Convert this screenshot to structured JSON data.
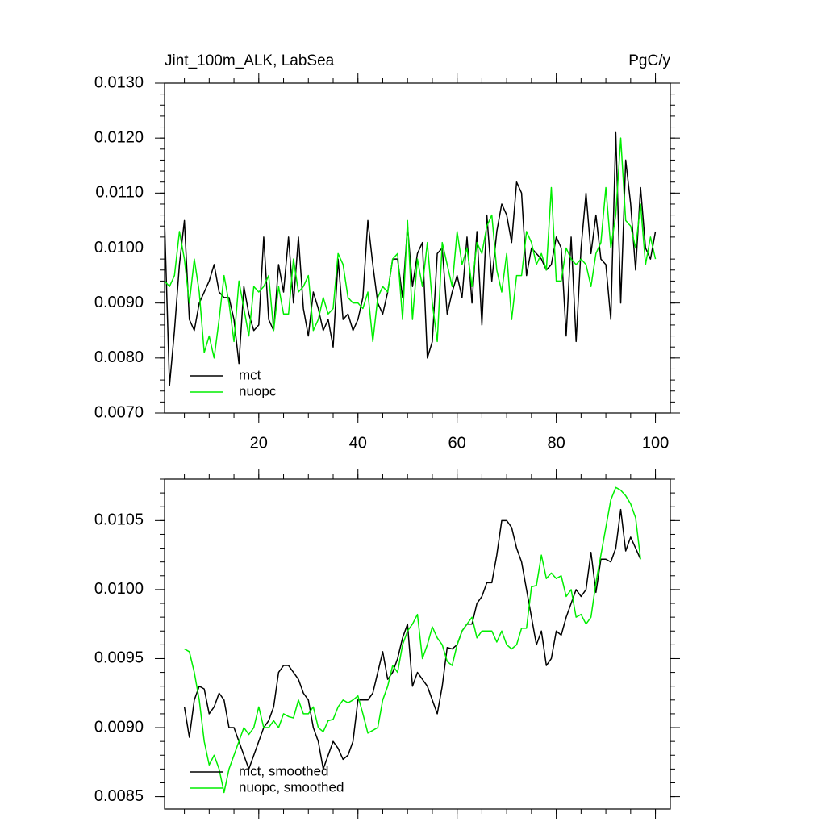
{
  "chart_data": [
    {
      "type": "line",
      "title": "Jint_100m_ALK, LabSea",
      "units": "PgC/y",
      "x": [
        1,
        2,
        3,
        4,
        5,
        6,
        7,
        8,
        9,
        10,
        11,
        12,
        13,
        14,
        15,
        16,
        17,
        18,
        19,
        20,
        21,
        22,
        23,
        24,
        25,
        26,
        27,
        28,
        29,
        30,
        31,
        32,
        33,
        34,
        35,
        36,
        37,
        38,
        39,
        40,
        41,
        42,
        43,
        44,
        45,
        46,
        47,
        48,
        49,
        50,
        51,
        52,
        53,
        54,
        55,
        56,
        57,
        58,
        59,
        60,
        61,
        62,
        63,
        64,
        65,
        66,
        67,
        68,
        69,
        70,
        71,
        72,
        73,
        74,
        75,
        76,
        77,
        78,
        79,
        80,
        81,
        82,
        83,
        84,
        85,
        86,
        87,
        88,
        89,
        90,
        91,
        92,
        93,
        94,
        95,
        96,
        97,
        98,
        99,
        100
      ],
      "series": [
        {
          "name": "mct",
          "color": "#000000",
          "values": [
            0.0105,
            0.0075,
            0.0085,
            0.0097,
            0.0105,
            0.0087,
            0.0085,
            0.009,
            0.0092,
            0.0094,
            0.0097,
            0.0092,
            0.0091,
            0.0091,
            0.0087,
            0.0079,
            0.0093,
            0.0088,
            0.0085,
            0.0086,
            0.0102,
            0.0087,
            0.0085,
            0.0097,
            0.0092,
            0.0102,
            0.009,
            0.0102,
            0.0089,
            0.0084,
            0.0092,
            0.0089,
            0.0085,
            0.0087,
            0.0082,
            0.0098,
            0.0087,
            0.0088,
            0.0085,
            0.0087,
            0.0091,
            0.0105,
            0.0097,
            0.009,
            0.0088,
            0.0092,
            0.0098,
            0.0098,
            0.0091,
            0.0104,
            0.0093,
            0.0099,
            0.0101,
            0.008,
            0.0083,
            0.0099,
            0.01,
            0.0088,
            0.0092,
            0.0095,
            0.0091,
            0.0102,
            0.009,
            0.0103,
            0.0086,
            0.0106,
            0.0094,
            0.0103,
            0.0108,
            0.0106,
            0.0101,
            0.0112,
            0.011,
            0.0095,
            0.01,
            0.0099,
            0.0098,
            0.0096,
            0.0097,
            0.0102,
            0.01,
            0.0084,
            0.0102,
            0.0083,
            0.01,
            0.011,
            0.0099,
            0.0106,
            0.0098,
            0.0097,
            0.0087,
            0.0121,
            0.009,
            0.0116,
            0.0108,
            0.0096,
            0.0111,
            0.01,
            0.0098,
            0.0103
          ]
        },
        {
          "name": "nuopc",
          "color": "#00ee00",
          "values": [
            0.0094,
            0.0093,
            0.0095,
            0.0103,
            0.0098,
            0.009,
            0.0098,
            0.0092,
            0.0081,
            0.0084,
            0.008,
            0.0087,
            0.0095,
            0.009,
            0.0083,
            0.0094,
            0.0089,
            0.0084,
            0.0093,
            0.0092,
            0.0093,
            0.0095,
            0.0085,
            0.0093,
            0.0088,
            0.0088,
            0.0098,
            0.0092,
            0.0093,
            0.0095,
            0.0085,
            0.0087,
            0.0091,
            0.0088,
            0.0089,
            0.0099,
            0.0097,
            0.0091,
            0.009,
            0.009,
            0.0089,
            0.0092,
            0.0083,
            0.0091,
            0.0093,
            0.0092,
            0.0098,
            0.0099,
            0.0087,
            0.0105,
            0.0087,
            0.0098,
            0.0093,
            0.0101,
            0.009,
            0.0083,
            0.0101,
            0.0097,
            0.0093,
            0.0103,
            0.0097,
            0.01,
            0.0093,
            0.0101,
            0.0099,
            0.0104,
            0.0106,
            0.0096,
            0.0092,
            0.0099,
            0.0087,
            0.0095,
            0.0095,
            0.0103,
            0.0101,
            0.0097,
            0.0099,
            0.0096,
            0.0111,
            0.0094,
            0.0094,
            0.01,
            0.0098,
            0.0097,
            0.0098,
            0.0097,
            0.0093,
            0.0099,
            0.0101,
            0.0111,
            0.01,
            0.0106,
            0.012,
            0.0105,
            0.0104,
            0.01,
            0.0108,
            0.0097,
            0.0102,
            0.0098
          ]
        }
      ],
      "xlim": [
        1,
        103
      ],
      "xticks": [
        20,
        40,
        60,
        80,
        100
      ],
      "ylim": [
        0.007,
        0.013
      ],
      "yticks": [
        {
          "value": 0.007,
          "label": "0.0070"
        },
        {
          "value": 0.008,
          "label": "0.0080"
        },
        {
          "value": 0.009,
          "label": "0.0090"
        },
        {
          "value": 0.01,
          "label": "0.0100"
        },
        {
          "value": 0.011,
          "label": "0.0110"
        },
        {
          "value": 0.012,
          "label": "0.0120"
        },
        {
          "value": 0.013,
          "label": "0.0130"
        }
      ],
      "legend": "lower left"
    },
    {
      "type": "line",
      "x": [
        5,
        6,
        7,
        8,
        9,
        10,
        11,
        12,
        13,
        14,
        15,
        16,
        17,
        18,
        19,
        20,
        21,
        22,
        23,
        24,
        25,
        26,
        27,
        28,
        29,
        30,
        31,
        32,
        33,
        34,
        35,
        36,
        37,
        38,
        39,
        40,
        41,
        42,
        43,
        44,
        45,
        46,
        47,
        48,
        49,
        50,
        51,
        52,
        53,
        54,
        55,
        56,
        57,
        58,
        59,
        60,
        61,
        62,
        63,
        64,
        65,
        66,
        67,
        68,
        69,
        70,
        71,
        72,
        73,
        74,
        75,
        76,
        77,
        78,
        79,
        80,
        81,
        82,
        83,
        84,
        85,
        86,
        87,
        88,
        89,
        90,
        91,
        92,
        93,
        94,
        95,
        96,
        97
      ],
      "series": [
        {
          "name": "mct, smoothed",
          "color": "#000000",
          "values": [
            0.00915,
            0.00893,
            0.0092,
            0.0093,
            0.00928,
            0.0091,
            0.00915,
            0.00925,
            0.0092,
            0.009,
            0.009,
            0.0089,
            0.0088,
            0.0087,
            0.0088,
            0.0089,
            0.009,
            0.00905,
            0.00915,
            0.0094,
            0.00945,
            0.00945,
            0.0094,
            0.00935,
            0.00925,
            0.0092,
            0.009,
            0.0089,
            0.0087,
            0.0088,
            0.0089,
            0.00885,
            0.00877,
            0.0088,
            0.0089,
            0.0092,
            0.0092,
            0.0092,
            0.00925,
            0.0094,
            0.00955,
            0.00935,
            0.0094,
            0.0095,
            0.00965,
            0.00975,
            0.0093,
            0.0094,
            0.00935,
            0.0093,
            0.0092,
            0.0091,
            0.0093,
            0.00958,
            0.00957,
            0.0096,
            0.0097,
            0.00975,
            0.00975,
            0.0099,
            0.00995,
            0.01005,
            0.01005,
            0.01025,
            0.0105,
            0.0105,
            0.01045,
            0.0103,
            0.0102,
            0.01,
            0.0098,
            0.0096,
            0.0097,
            0.00945,
            0.0095,
            0.0097,
            0.00967,
            0.0098,
            0.0099,
            0.01,
            0.00995,
            0.01,
            0.01027,
            0.00998,
            0.01022,
            0.01022,
            0.0102,
            0.0103,
            0.01058,
            0.01028,
            0.01038,
            0.0103,
            0.01022
          ]
        },
        {
          "name": "nuopc, smoothed",
          "color": "#00ee00",
          "values": [
            0.00957,
            0.00955,
            0.0094,
            0.0092,
            0.0089,
            0.00873,
            0.0088,
            0.0087,
            0.00853,
            0.0087,
            0.0088,
            0.0089,
            0.009,
            0.00895,
            0.009,
            0.00915,
            0.009,
            0.009,
            0.00905,
            0.009,
            0.0091,
            0.00908,
            0.00907,
            0.0092,
            0.0091,
            0.0091,
            0.00915,
            0.009,
            0.00897,
            0.00905,
            0.00906,
            0.00915,
            0.0092,
            0.00918,
            0.0092,
            0.00923,
            0.0091,
            0.00896,
            0.00898,
            0.009,
            0.0092,
            0.0093,
            0.00945,
            0.0094,
            0.0096,
            0.0097,
            0.00975,
            0.00982,
            0.0095,
            0.0096,
            0.00973,
            0.00965,
            0.0096,
            0.00948,
            0.00945,
            0.0096,
            0.0097,
            0.00975,
            0.0098,
            0.00965,
            0.0097,
            0.0097,
            0.0097,
            0.00962,
            0.0097,
            0.0096,
            0.00957,
            0.0096,
            0.00972,
            0.00972,
            0.01002,
            0.01003,
            0.01025,
            0.01008,
            0.01012,
            0.01008,
            0.0101,
            0.00995,
            0.01,
            0.0098,
            0.00982,
            0.00975,
            0.0098,
            0.01005,
            0.01025,
            0.01045,
            0.01065,
            0.01074,
            0.01072,
            0.01068,
            0.01062,
            0.01052,
            0.01022
          ]
        }
      ],
      "xlim": [
        1,
        103
      ],
      "ylim": [
        0.00841,
        0.0108
      ],
      "yticks": [
        0.0085,
        {
          "value": 0.009,
          "label": "0.0090"
        },
        0.0095,
        {
          "value": 0.01,
          "label": "0.0100"
        },
        0.0105
      ],
      "legend": "lower left"
    }
  ]
}
